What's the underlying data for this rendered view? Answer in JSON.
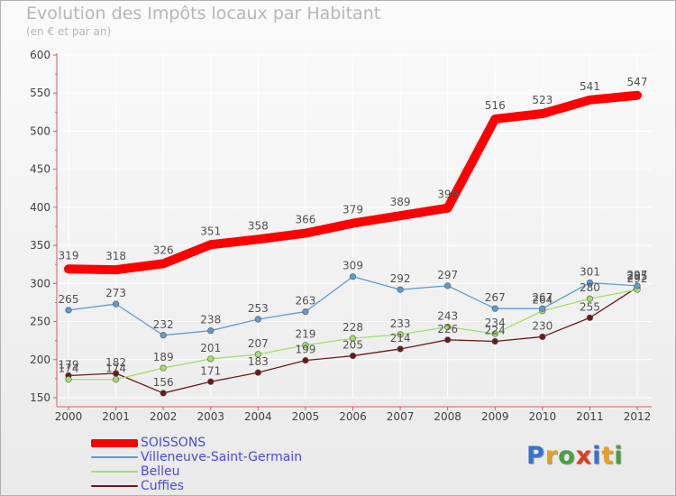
{
  "title": "Evolution des Impôts locaux par Habitant",
  "subtitle": "(en € et par an)",
  "logo_text": "Proxiti",
  "logo_colors": [
    "#3a72c8",
    "#e8a020",
    "#4aa040",
    "#d84020",
    "#3a72c8",
    "#e8a020",
    "#4aa040"
  ],
  "colors": {
    "axis": "#d06060",
    "grid": "#ffffff",
    "tick_text": "#404040",
    "data_label": "#505050",
    "legend_text": "#4a4ae0"
  },
  "chart_data": {
    "type": "line",
    "title": "Evolution des Impôts locaux par Habitant",
    "subtitle": "(en € et par an)",
    "x": [
      "2000",
      "2001",
      "2002",
      "2003",
      "2004",
      "2005",
      "2006",
      "2007",
      "2008",
      "2009",
      "2010",
      "2011",
      "2012"
    ],
    "ylim": [
      150,
      600
    ],
    "yticks": [
      150,
      200,
      250,
      300,
      350,
      400,
      450,
      500,
      550,
      600
    ],
    "grid": true,
    "legend_position": "bottom-left",
    "series": [
      {
        "name": "SOISSONS",
        "color": "#ff0000",
        "values": [
          319,
          318,
          326,
          351,
          358,
          366,
          379,
          389,
          399,
          516,
          523,
          541,
          547
        ]
      },
      {
        "name": "Villeneuve-Saint-Germain",
        "color": "#5f9ad0",
        "values": [
          265,
          273,
          232,
          238,
          253,
          263,
          309,
          292,
          297,
          267,
          267,
          301,
          297
        ]
      },
      {
        "name": "Belleu",
        "color": "#9ee06a",
        "values": [
          174,
          174,
          189,
          201,
          207,
          219,
          228,
          233,
          243,
          234,
          264,
          280,
          292
        ]
      },
      {
        "name": "Cuffies",
        "color": "#6b1a1a",
        "values": [
          179,
          182,
          156,
          171,
          183,
          199,
          205,
          214,
          226,
          224,
          230,
          255,
          295
        ]
      }
    ]
  }
}
